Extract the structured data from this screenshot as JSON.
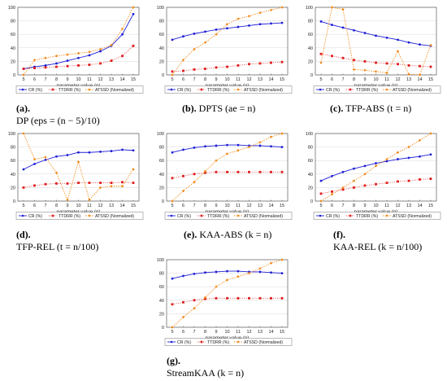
{
  "colors": {
    "cr": "#1f1fd6",
    "ttdrr": "#e01b1b",
    "atssd": "#f28a1a"
  },
  "legend": {
    "cr": "CR (%)",
    "ttdrr": "TTDRR (%)",
    "atssd": "ATSSD (Normalized)"
  },
  "chart_data": [
    {
      "type": "line",
      "tag": "(a).",
      "caption": "DP (eps = (n − 5)/10)",
      "xlabel": "parameter value (n)",
      "x": [
        5,
        6,
        7,
        8,
        9,
        10,
        11,
        12,
        13,
        14,
        15
      ],
      "xticks": [
        "5",
        "6",
        "7",
        "8",
        "9",
        "10",
        "11",
        "12",
        "13",
        "14",
        "15"
      ],
      "ylim": [
        0,
        100
      ],
      "yticks": [
        "0",
        "20",
        "40",
        "60",
        "80",
        "100"
      ],
      "series": [
        {
          "name": "CR (%)",
          "values": [
            9,
            12,
            14,
            17,
            21,
            25,
            29,
            35,
            43,
            60,
            90
          ]
        },
        {
          "name": "TTDRR (%)",
          "values": [
            9,
            10,
            11,
            12,
            13,
            14,
            15,
            17,
            21,
            28,
            43
          ]
        },
        {
          "name": "ATSSD (Normalized)",
          "values": [
            0,
            22,
            25,
            28,
            30,
            32,
            34,
            38,
            44,
            68,
            100
          ]
        }
      ]
    },
    {
      "type": "line",
      "tag": "(b).",
      "caption": "DPTS (ae = n)",
      "xlabel": "parameter value (n)",
      "x": [
        5,
        6,
        7,
        8,
        9,
        10,
        11,
        12,
        13,
        14,
        15
      ],
      "xticks": [
        "5",
        "6",
        "7",
        "8",
        "9",
        "10",
        "11",
        "12",
        "13",
        "14",
        "15"
      ],
      "ylim": [
        0,
        100
      ],
      "yticks": [
        "0",
        "20",
        "40",
        "60",
        "80",
        "100"
      ],
      "series": [
        {
          "name": "CR (%)",
          "values": [
            52,
            57,
            61,
            64,
            67,
            69,
            71,
            73,
            75,
            76,
            77
          ]
        },
        {
          "name": "TTDRR (%)",
          "values": [
            5,
            6,
            8,
            9,
            11,
            12,
            14,
            16,
            17,
            18,
            19
          ]
        },
        {
          "name": "ATSSD (Normalized)",
          "values": [
            0,
            22,
            38,
            48,
            60,
            75,
            83,
            87,
            92,
            96,
            100
          ]
        }
      ]
    },
    {
      "type": "line",
      "tag": "(c).",
      "caption": "TFP-ABS (t = n)",
      "xlabel": "parameter value (n)",
      "x": [
        5,
        6,
        7,
        8,
        9,
        10,
        11,
        12,
        13,
        14,
        15
      ],
      "xticks": [
        "5",
        "6",
        "7",
        "8",
        "9",
        "10",
        "11",
        "12",
        "13",
        "14",
        "15"
      ],
      "ylim": [
        0,
        100
      ],
      "yticks": [
        "0",
        "20",
        "40",
        "60",
        "80",
        "100"
      ],
      "series": [
        {
          "name": "CR (%)",
          "values": [
            79,
            74,
            70,
            66,
            62,
            58,
            55,
            52,
            48,
            45,
            43
          ]
        },
        {
          "name": "TTDRR (%)",
          "values": [
            31,
            28,
            25,
            22,
            20,
            18,
            17,
            16,
            14,
            13,
            12
          ]
        },
        {
          "name": "ATSSD (Normalized)",
          "values": [
            18,
            100,
            97,
            8,
            7,
            5,
            3,
            35,
            1,
            0,
            44
          ]
        }
      ]
    },
    {
      "type": "line",
      "tag": "(d).",
      "caption": "TFP-REL (t = n/100)",
      "xlabel": "parameter value (n)",
      "x": [
        5,
        6,
        7,
        8,
        9,
        10,
        11,
        12,
        13,
        14,
        15
      ],
      "xticks": [
        "5",
        "6",
        "7",
        "8",
        "9",
        "10",
        "11",
        "12",
        "13",
        "14",
        "15"
      ],
      "ylim": [
        0,
        100
      ],
      "yticks": [
        "0",
        "20",
        "40",
        "60",
        "80",
        "100"
      ],
      "series": [
        {
          "name": "CR (%)",
          "values": [
            47,
            55,
            61,
            66,
            68,
            72,
            72,
            73,
            74,
            76,
            75
          ]
        },
        {
          "name": "TTDRR (%)",
          "values": [
            20,
            23,
            25,
            26,
            26,
            27,
            27,
            27,
            27,
            28,
            27
          ]
        },
        {
          "name": "ATSSD (Normalized)",
          "values": [
            100,
            62,
            65,
            42,
            2,
            58,
            2,
            20,
            22,
            22,
            47
          ]
        }
      ]
    },
    {
      "type": "line",
      "tag": "(e).",
      "caption": "KAA-ABS (k = n)",
      "xlabel": "parameter value (n)",
      "x": [
        5,
        6,
        7,
        8,
        9,
        10,
        11,
        12,
        13,
        14,
        15
      ],
      "xticks": [
        "5",
        "6",
        "7",
        "8",
        "9",
        "10",
        "11",
        "12",
        "13",
        "14",
        "15"
      ],
      "ylim": [
        0,
        100
      ],
      "yticks": [
        "0",
        "20",
        "40",
        "60",
        "80",
        "100"
      ],
      "series": [
        {
          "name": "CR (%)",
          "values": [
            72,
            76,
            79,
            81,
            82,
            83,
            83,
            82,
            82,
            81,
            80
          ]
        },
        {
          "name": "TTDRR (%)",
          "values": [
            34,
            37,
            40,
            42,
            43,
            43,
            43,
            43,
            43,
            43,
            43
          ]
        },
        {
          "name": "ATSSD (Normalized)",
          "values": [
            0,
            15,
            28,
            44,
            60,
            70,
            75,
            80,
            87,
            95,
            100
          ]
        }
      ]
    },
    {
      "type": "line",
      "tag": "(f).",
      "caption": "KAA-REL (k = n/100)",
      "xlabel": "parameter value (n)",
      "x": [
        5,
        6,
        7,
        8,
        9,
        10,
        11,
        12,
        13,
        14,
        15
      ],
      "xticks": [
        "5",
        "6",
        "7",
        "8",
        "9",
        "10",
        "11",
        "12",
        "13",
        "14",
        "15"
      ],
      "ylim": [
        0,
        100
      ],
      "yticks": [
        "0",
        "20",
        "40",
        "60",
        "80",
        "100"
      ],
      "series": [
        {
          "name": "CR (%)",
          "values": [
            30,
            37,
            43,
            48,
            52,
            56,
            59,
            62,
            64,
            66,
            69
          ]
        },
        {
          "name": "TTDRR (%)",
          "values": [
            11,
            14,
            17,
            20,
            23,
            25,
            27,
            29,
            30,
            32,
            33
          ]
        },
        {
          "name": "ATSSD (Normalized)",
          "values": [
            0,
            10,
            20,
            30,
            40,
            52,
            62,
            72,
            80,
            90,
            100
          ]
        }
      ]
    },
    {
      "type": "line",
      "tag": "(g).",
      "caption": "StreamKAA (k = n)",
      "xlabel": "parameter value (n)",
      "x": [
        5,
        6,
        7,
        8,
        9,
        10,
        11,
        12,
        13,
        14,
        15
      ],
      "xticks": [
        "5",
        "6",
        "7",
        "8",
        "9",
        "10",
        "11",
        "12",
        "13",
        "14",
        "15"
      ],
      "ylim": [
        0,
        100
      ],
      "yticks": [
        "0",
        "20",
        "40",
        "60",
        "80",
        "100"
      ],
      "series": [
        {
          "name": "CR (%)",
          "values": [
            72,
            76,
            79,
            81,
            82,
            83,
            83,
            82,
            82,
            81,
            80
          ]
        },
        {
          "name": "TTDRR (%)",
          "values": [
            34,
            37,
            40,
            42,
            43,
            43,
            43,
            43,
            43,
            43,
            43
          ]
        },
        {
          "name": "ATSSD (Normalized)",
          "values": [
            0,
            15,
            28,
            44,
            60,
            70,
            75,
            80,
            87,
            95,
            100
          ]
        }
      ]
    }
  ]
}
